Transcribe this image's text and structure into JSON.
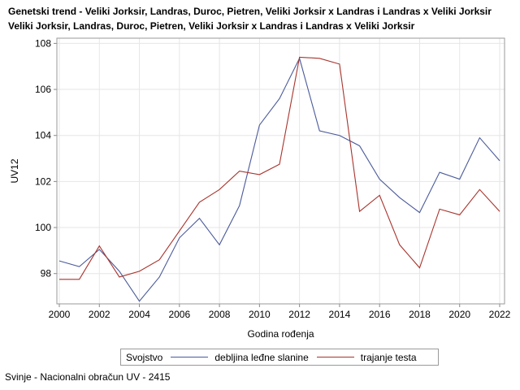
{
  "chart_data": {
    "type": "line",
    "title": "Genetski trend - Veliki Jorksir, Landras, Duroc, Pietren, Veliki Jorksir x Landras i Landras x Veliki Jorksir",
    "subtitle": "Veliki Jorksir, Landras, Duroc, Pietren, Veliki Jorksir x Landras i Landras x Veliki Jorksir",
    "xlabel": "Godina rođenja",
    "ylabel": "UV12",
    "x": [
      2000,
      2001,
      2002,
      2003,
      2004,
      2005,
      2006,
      2007,
      2008,
      2009,
      2010,
      2011,
      2012,
      2013,
      2014,
      2015,
      2016,
      2017,
      2018,
      2019,
      2020,
      2021,
      2022
    ],
    "xticks": [
      2000,
      2002,
      2004,
      2006,
      2008,
      2010,
      2012,
      2014,
      2016,
      2018,
      2020,
      2022
    ],
    "yticks": [
      98,
      100,
      102,
      104,
      106,
      108
    ],
    "xlim": [
      2000,
      2022
    ],
    "ylim": [
      96.7,
      108.2
    ],
    "grid": true,
    "legend_position": "bottom",
    "legend_title": "Svojstvo",
    "series": [
      {
        "name": "debljina leđne slanine",
        "color": "#4a5a9a",
        "values": [
          98.55,
          98.3,
          99.05,
          98.1,
          96.8,
          97.85,
          99.55,
          100.4,
          99.25,
          100.95,
          104.45,
          105.6,
          107.35,
          104.2,
          104.0,
          103.55,
          102.1,
          101.3,
          100.65,
          102.4,
          102.1,
          103.9,
          102.9
        ]
      },
      {
        "name": "trajanje testa",
        "color": "#a8332c",
        "values": [
          97.75,
          97.75,
          99.2,
          97.85,
          98.1,
          98.6,
          99.85,
          101.1,
          101.65,
          102.45,
          102.3,
          102.75,
          107.4,
          107.35,
          107.1,
          100.7,
          101.4,
          99.25,
          98.25,
          100.8,
          100.55,
          101.65,
          100.7
        ]
      }
    ]
  },
  "footnote": "Svinje - Nacionalni obračun UV - 2415"
}
